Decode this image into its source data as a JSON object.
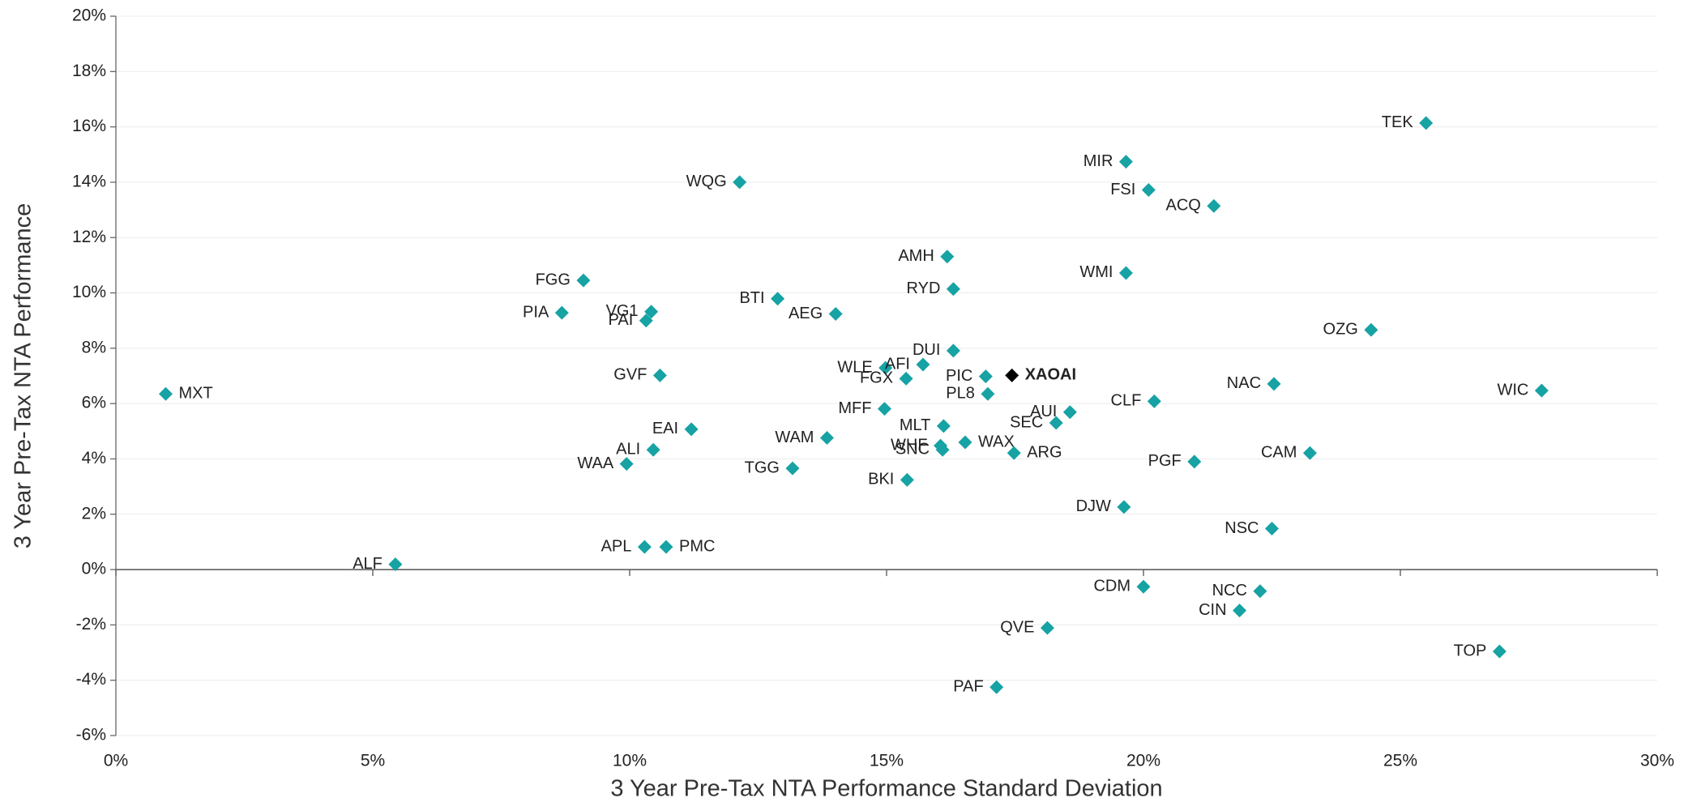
{
  "chart_data": {
    "type": "scatter",
    "x_label": "3 Year Pre-Tax NTA Performance Standard Deviation",
    "y_label": "3 Year Pre-Tax NTA Performance",
    "xlim": [
      0,
      30
    ],
    "xticks": [
      {
        "value": 0,
        "label": "0%"
      },
      {
        "value": 5,
        "label": "5%"
      },
      {
        "value": 10,
        "label": "10%"
      },
      {
        "value": 15,
        "label": "15%"
      },
      {
        "value": 20,
        "label": "20%"
      },
      {
        "value": 25,
        "label": "25%"
      },
      {
        "value": 30,
        "label": "30%"
      }
    ],
    "ylim": [
      -6,
      20
    ],
    "yticks": [
      {
        "value": -6,
        "label": "-6%"
      },
      {
        "value": -4,
        "label": "-4%"
      },
      {
        "value": -2,
        "label": "-2%"
      },
      {
        "value": 0,
        "label": "0%"
      },
      {
        "value": 2,
        "label": "2%"
      },
      {
        "value": 4,
        "label": "4%"
      },
      {
        "value": 6,
        "label": "6%"
      },
      {
        "value": 8,
        "label": "8%"
      },
      {
        "value": 10,
        "label": "10%"
      },
      {
        "value": 12,
        "label": "12%"
      },
      {
        "value": 14,
        "label": "14%"
      },
      {
        "value": 16,
        "label": "16%"
      },
      {
        "value": 18,
        "label": "18%"
      },
      {
        "value": 20,
        "label": "20%"
      }
    ],
    "grid": true,
    "color": "#17a2a4",
    "points": [
      {
        "label": "MXT",
        "x": 0.97,
        "y": 6.35
      },
      {
        "label": "ALF",
        "x": 5.44,
        "y": 0.19
      },
      {
        "label": "WAA",
        "x": 9.94,
        "y": 3.82
      },
      {
        "label": "ALI",
        "x": 10.46,
        "y": 4.33
      },
      {
        "label": "APL",
        "x": 10.29,
        "y": 0.82
      },
      {
        "label": "PMC",
        "x": 10.71,
        "y": 0.82
      },
      {
        "label": "EAI",
        "x": 11.2,
        "y": 5.07
      },
      {
        "label": "GVF",
        "x": 10.59,
        "y": 7.02
      },
      {
        "label": "PIA",
        "x": 8.68,
        "y": 9.28
      },
      {
        "label": "FGG",
        "x": 9.1,
        "y": 10.45
      },
      {
        "label": "VG1",
        "x": 10.42,
        "y": 9.32
      },
      {
        "label": "PAI",
        "x": 10.32,
        "y": 9.0
      },
      {
        "label": "WQG",
        "x": 12.14,
        "y": 14.0
      },
      {
        "label": "BTI",
        "x": 12.88,
        "y": 9.79
      },
      {
        "label": "AEG",
        "x": 14.01,
        "y": 9.24
      },
      {
        "label": "TGG",
        "x": 13.17,
        "y": 3.66
      },
      {
        "label": "WAM",
        "x": 13.84,
        "y": 4.76
      },
      {
        "label": "MFF",
        "x": 14.96,
        "y": 5.81
      },
      {
        "label": "WLE",
        "x": 14.98,
        "y": 7.29
      },
      {
        "label": "AFI",
        "x": 15.71,
        "y": 7.41
      },
      {
        "label": "FGX",
        "x": 15.38,
        "y": 6.9
      },
      {
        "label": "DUI",
        "x": 16.3,
        "y": 7.91
      },
      {
        "label": "AMH",
        "x": 16.18,
        "y": 11.31
      },
      {
        "label": "RYD",
        "x": 16.3,
        "y": 10.14
      },
      {
        "label": "PIC",
        "x": 16.93,
        "y": 6.98
      },
      {
        "label": "PL8",
        "x": 16.97,
        "y": 6.35
      },
      {
        "label": "MLT",
        "x": 16.11,
        "y": 5.19
      },
      {
        "label": "WHF",
        "x": 16.05,
        "y": 4.48
      },
      {
        "label": "SNC",
        "x": 16.09,
        "y": 4.33
      },
      {
        "label": "WAX",
        "x": 16.53,
        "y": 4.6
      },
      {
        "label": "BKI",
        "x": 15.4,
        "y": 3.24
      },
      {
        "label": "ARG",
        "x": 17.48,
        "y": 4.21
      },
      {
        "label": "SEC",
        "x": 18.3,
        "y": 5.3
      },
      {
        "label": "AUI",
        "x": 18.57,
        "y": 5.69
      },
      {
        "label": "MIR",
        "x": 19.66,
        "y": 14.74
      },
      {
        "label": "FSI",
        "x": 20.1,
        "y": 13.72
      },
      {
        "label": "ACQ",
        "x": 21.37,
        "y": 13.14
      },
      {
        "label": "WMI",
        "x": 19.66,
        "y": 10.72
      },
      {
        "label": "CLF",
        "x": 20.21,
        "y": 6.08
      },
      {
        "label": "DJW",
        "x": 19.62,
        "y": 2.26
      },
      {
        "label": "PGF",
        "x": 20.99,
        "y": 3.9
      },
      {
        "label": "CDM",
        "x": 20.0,
        "y": -0.62
      },
      {
        "label": "NCC",
        "x": 22.27,
        "y": -0.78
      },
      {
        "label": "CIN",
        "x": 21.87,
        "y": -1.48
      },
      {
        "label": "QVE",
        "x": 18.13,
        "y": -2.11
      },
      {
        "label": "PAF",
        "x": 17.14,
        "y": -4.25
      },
      {
        "label": "NAC",
        "x": 22.54,
        "y": 6.71
      },
      {
        "label": "NSC",
        "x": 22.5,
        "y": 1.48
      },
      {
        "label": "CAM",
        "x": 23.24,
        "y": 4.21
      },
      {
        "label": "OZG",
        "x": 24.43,
        "y": 8.66
      },
      {
        "label": "TEK",
        "x": 25.5,
        "y": 16.14
      },
      {
        "label": "WIC",
        "x": 27.75,
        "y": 6.47
      },
      {
        "label": "TOP",
        "x": 26.93,
        "y": -2.96
      }
    ],
    "highlight": {
      "label": "XAOAI",
      "x": 17.44,
      "y": 7.02,
      "color": "#000000"
    }
  }
}
